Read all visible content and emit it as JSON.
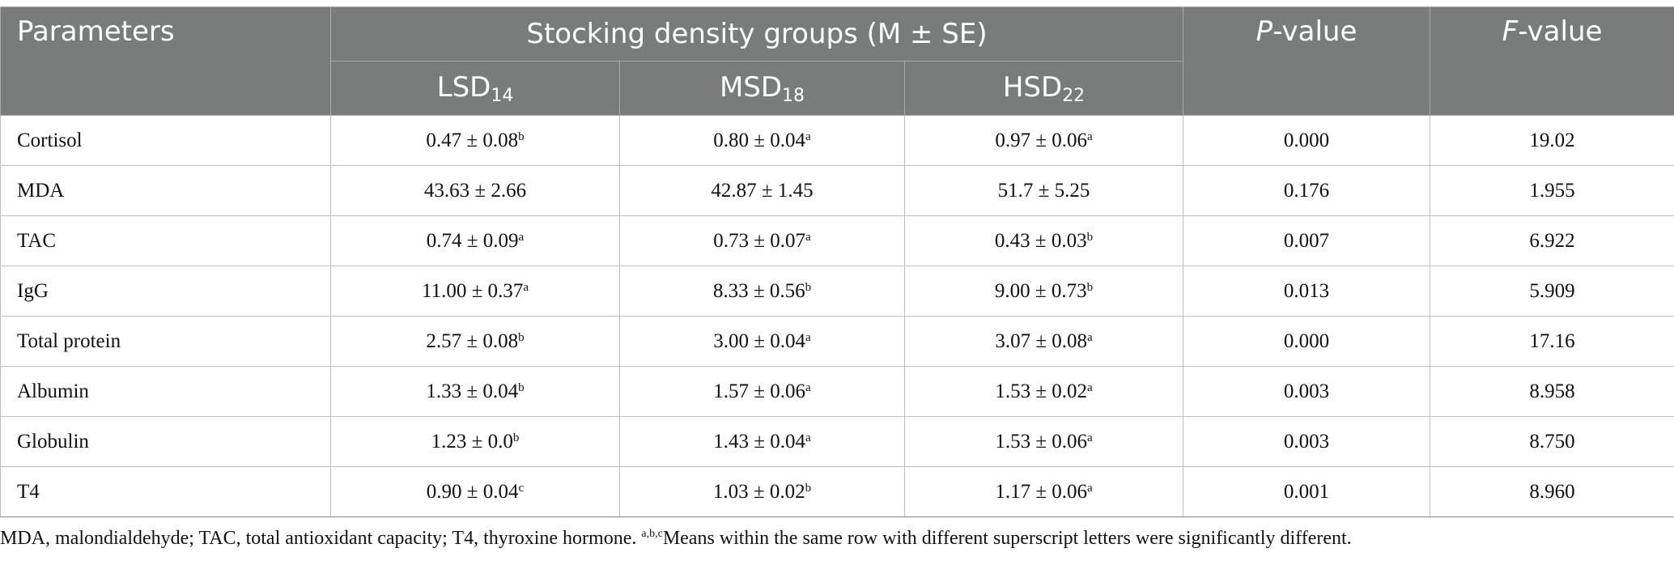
{
  "header": {
    "parameters": "Parameters",
    "group_title": "Stocking density groups (M ± SE)",
    "p_value": {
      "italic": "P",
      "rest": "-value"
    },
    "f_value": {
      "italic": "F",
      "rest": "-value"
    },
    "groups": [
      {
        "base": "LSD",
        "sub": "14"
      },
      {
        "base": "MSD",
        "sub": "18"
      },
      {
        "base": "HSD",
        "sub": "22"
      }
    ]
  },
  "rows": [
    {
      "name": "Cortisol",
      "cells": [
        {
          "v": "0.47 ± 0.08",
          "s": "b"
        },
        {
          "v": "0.80 ± 0.04",
          "s": "a"
        },
        {
          "v": "0.97 ± 0.06",
          "s": "a"
        }
      ],
      "p": "0.000",
      "f": "19.02"
    },
    {
      "name": "MDA",
      "cells": [
        {
          "v": "43.63 ± 2.66",
          "s": ""
        },
        {
          "v": "42.87 ± 1.45",
          "s": ""
        },
        {
          "v": "51.7 ± 5.25",
          "s": ""
        }
      ],
      "p": "0.176",
      "f": "1.955"
    },
    {
      "name": "TAC",
      "cells": [
        {
          "v": "0.74 ± 0.09",
          "s": "a"
        },
        {
          "v": "0.73 ± 0.07",
          "s": "a"
        },
        {
          "v": "0.43 ± 0.03",
          "s": "b"
        }
      ],
      "p": "0.007",
      "f": "6.922"
    },
    {
      "name": "IgG",
      "cells": [
        {
          "v": "11.00 ± 0.37",
          "s": "a"
        },
        {
          "v": "8.33 ± 0.56",
          "s": "b"
        },
        {
          "v": "9.00 ± 0.73",
          "s": "b"
        }
      ],
      "p": "0.013",
      "f": "5.909"
    },
    {
      "name": "Total protein",
      "cells": [
        {
          "v": "2.57 ± 0.08",
          "s": "b"
        },
        {
          "v": "3.00 ± 0.04",
          "s": "a"
        },
        {
          "v": "3.07 ± 0.08",
          "s": "a"
        }
      ],
      "p": "0.000",
      "f": "17.16"
    },
    {
      "name": "Albumin",
      "cells": [
        {
          "v": "1.33 ± 0.04",
          "s": "b"
        },
        {
          "v": "1.57 ± 0.06",
          "s": "a"
        },
        {
          "v": "1.53 ± 0.02",
          "s": "a"
        }
      ],
      "p": "0.003",
      "f": "8.958"
    },
    {
      "name": "Globulin",
      "cells": [
        {
          "v": "1.23 ± 0.0",
          "s": "b"
        },
        {
          "v": "1.43 ± 0.04",
          "s": "a"
        },
        {
          "v": "1.53 ± 0.06",
          "s": "a"
        }
      ],
      "p": "0.003",
      "f": "8.750"
    },
    {
      "name": "T4",
      "cells": [
        {
          "v": "0.90 ± 0.04",
          "s": "c"
        },
        {
          "v": "1.03 ± 0.02",
          "s": "b"
        },
        {
          "v": "1.17 ± 0.06",
          "s": "a"
        }
      ],
      "p": "0.001",
      "f": "8.960"
    }
  ],
  "footnote": {
    "lead": "MDA, malondialdehyde; TAC, total antioxidant capacity; T4, thyroxine hormone. ",
    "sup": "a,b,c",
    "tail": "Means within the same row with different superscript letters were significantly different."
  }
}
